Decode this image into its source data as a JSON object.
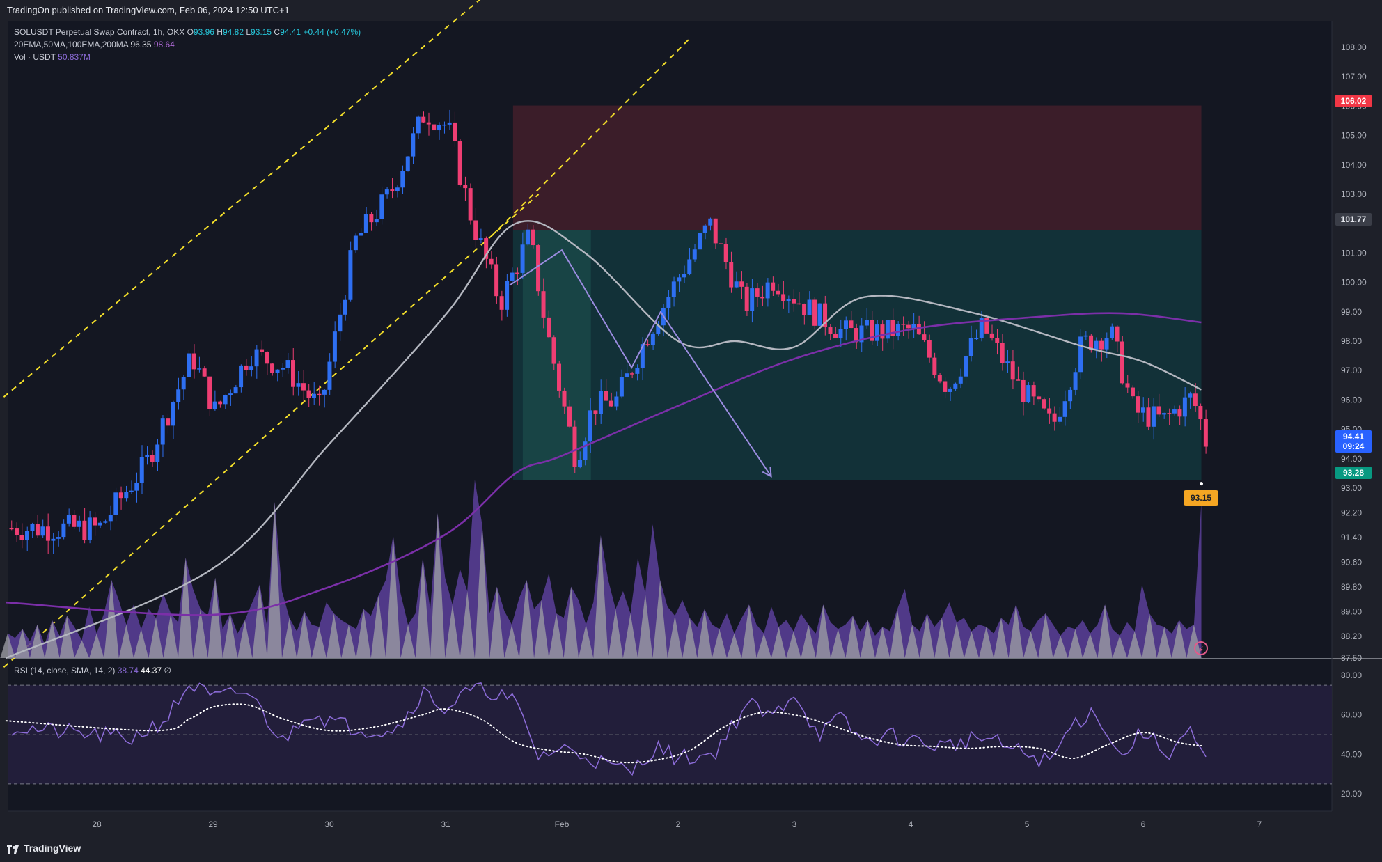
{
  "header": {
    "publisher_line": "TradingOn published on TradingView.com, Feb 06, 2024 12:50 UTC+1"
  },
  "legend": {
    "symbol_line": "SOLUSDT Perpetual Swap Contract, 1h, OKX",
    "ohlc": {
      "o_label": "O",
      "o": "93.96",
      "h_label": "H",
      "h": "94.82",
      "l_label": "L",
      "l": "93.15",
      "c_label": "C",
      "c": "94.41",
      "chg": "+0.44 (+0.47%)"
    },
    "ma_line": "20EMA,50MA,100EMA,200MA",
    "ma_val1": "96.35",
    "ma_val2": "98.64",
    "vol_line": "Vol · USDT",
    "vol_val": "50.837M",
    "rsi_line": "RSI (14, close, SMA, 14, 2)",
    "rsi_val1": "38.74",
    "rsi_val2": "44.37",
    "rsi_val3": "∅"
  },
  "price_tags": {
    "stop": "106.02",
    "entry": "101.77",
    "last_price": "94.41",
    "countdown": "09:24",
    "target": "93.28",
    "low": "93.15"
  },
  "footer": {
    "brand": "TradingView"
  },
  "colors": {
    "bull": "#2e6ff2",
    "bear": "#ef3e73",
    "ema": "#b4b7c0",
    "ma200": "#7b2fa8",
    "channel": "#f5e02a",
    "stop_zone": "#3d1e2a",
    "target_zone": "#12333a",
    "arrow": "#9b8ce0",
    "rsi": "#8c6cd8",
    "rsi_ma": "#ffffff",
    "rsi_band": "#231f3d"
  },
  "chart_data": [
    {
      "type": "candlestick",
      "title": "",
      "x_tick_labels": [
        "28",
        "29",
        "30",
        "31",
        "Feb",
        "2",
        "3",
        "4",
        "5",
        "6",
        "7"
      ],
      "y_tick_labels": [
        "108.00",
        "107.00",
        "106.00",
        "105.00",
        "104.00",
        "103.00",
        "102.00",
        "101.00",
        "100.00",
        "99.00",
        "98.00",
        "97.00",
        "96.00",
        "95.00",
        "94.00",
        "93.00",
        "92.20",
        "91.40",
        "90.60",
        "89.80",
        "89.00",
        "88.20",
        "87.50"
      ],
      "ylim": [
        87.5,
        108.3
      ],
      "series_keypoints": {
        "description_note": "",
        "day_index": [
          0,
          0.4,
          0.8,
          1.0,
          1.3,
          1.6,
          1.9,
          2.2,
          2.5,
          2.8,
          3.0,
          3.2,
          3.45,
          3.7,
          3.85,
          4.1,
          4.25,
          4.45,
          4.7,
          5.0,
          5.25,
          5.55,
          5.8,
          6.1,
          6.4,
          6.7,
          7.0,
          7.3,
          7.6,
          7.9,
          8.2,
          8.45,
          8.7,
          8.9,
          9.15,
          9.4,
          9.55
        ],
        "close": [
          91.7,
          93.8,
          97.5,
          95.6,
          97.6,
          97.1,
          95.7,
          101.4,
          103.0,
          105.8,
          105.3,
          102.2,
          99.3,
          101.6,
          98.3,
          94.0,
          95.8,
          96.0,
          98.1,
          100.3,
          102.0,
          99.2,
          100.1,
          99.1,
          98.3,
          98.3,
          98.4,
          96.4,
          98.5,
          96.5,
          95.1,
          97.9,
          98.3,
          95.6,
          95.3,
          96.1,
          94.41
        ]
      },
      "ema_50": {
        "day_index": [
          0,
          1.0,
          2.0,
          3.0,
          3.6,
          4.2,
          5.0,
          5.5,
          6.0,
          6.6,
          7.5,
          8.5,
          9.0,
          9.5
        ],
        "value": [
          87.5,
          90.4,
          94.5,
          98.9,
          102.0,
          101.0,
          98.0,
          98.0,
          97.8,
          99.5,
          99.0,
          97.8,
          97.3,
          96.35
        ]
      },
      "ma_200": {
        "day_index": [
          0,
          1.0,
          2.0,
          3.0,
          3.6,
          4.0,
          5.0,
          6.0,
          7.0,
          8.0,
          8.8,
          9.5
        ],
        "value": [
          89.3,
          88.9,
          89.8,
          91.5,
          93.5,
          94.1,
          95.8,
          97.4,
          98.4,
          98.8,
          98.95,
          98.64
        ]
      },
      "channel": {
        "upper": {
          "from": [
            -0.8,
            96.1
          ],
          "to": [
            3.5,
            110.3
          ]
        },
        "lower_1": {
          "from": [
            -0.8,
            87.2
          ],
          "to": [
            3.8,
            103.0
          ]
        },
        "lower_2": {
          "from": [
            3.4,
            101.6
          ],
          "to": [
            5.1,
            108.3
          ]
        }
      },
      "position": {
        "from_day": 3.58,
        "to_day": 9.5,
        "stop": 106.02,
        "entry": 101.77,
        "target": 93.28
      },
      "projection_path": [
        [
          3.55,
          99.9
        ],
        [
          4.0,
          101.1
        ],
        [
          4.6,
          97.1
        ],
        [
          4.85,
          99.0
        ],
        [
          5.8,
          93.4
        ]
      ],
      "volume_peaks_note": "",
      "volume": [
        22,
        18,
        26,
        15,
        30,
        12,
        34,
        20,
        38,
        28,
        16,
        46,
        22,
        40,
        70,
        52,
        30,
        48,
        26,
        44,
        36,
        58,
        40,
        32,
        90,
        62,
        44,
        38,
        72,
        26,
        40,
        22,
        34,
        50,
        66,
        28,
        140,
        60,
        36,
        24,
        42,
        30,
        28,
        50,
        40,
        34,
        30,
        26,
        44,
        38,
        56,
        70,
        110,
        58,
        30,
        40,
        90,
        44,
        130,
        72,
        48,
        80,
        60,
        160,
        120,
        40,
        64,
        42,
        30,
        54,
        70,
        44,
        52,
        76,
        40,
        36,
        64,
        52,
        30,
        50,
        110,
        70,
        44,
        60,
        40,
        90,
        58,
        120,
        70,
        46,
        38,
        52,
        36,
        28,
        44,
        30,
        26,
        40,
        22,
        36,
        48,
        30,
        22,
        46,
        28,
        34,
        24,
        40,
        30,
        22,
        48,
        32,
        26,
        30,
        38,
        24,
        34,
        20,
        28,
        24,
        44,
        62,
        30,
        24,
        40,
        28,
        36,
        50,
        32,
        36,
        24,
        30,
        28,
        22,
        36,
        30,
        48,
        28,
        24,
        34,
        40,
        30,
        20,
        28,
        26,
        34,
        22,
        30,
        48,
        26,
        20,
        32,
        24,
        66,
        40,
        30,
        28,
        22,
        34,
        26,
        30,
        140
      ]
    },
    {
      "type": "line",
      "title": "",
      "y_tick_labels": [
        "80.00",
        "60.00",
        "40.00",
        "20.00"
      ],
      "ylim": [
        15,
        83
      ],
      "bands": [
        75,
        25
      ],
      "midline": 50,
      "rsi": {
        "day_index": [
          0,
          0.3,
          0.6,
          0.8,
          1.0,
          1.3,
          1.6,
          1.8,
          2.1,
          2.4,
          2.6,
          2.8,
          3.0,
          3.2,
          3.4,
          3.6,
          3.8,
          4.0,
          4.2,
          4.4,
          4.6,
          4.8,
          5.0,
          5.3,
          5.6,
          5.8,
          6.0,
          6.2,
          6.4,
          6.6,
          6.8,
          7.0,
          7.3,
          7.6,
          7.9,
          8.2,
          8.4,
          8.6,
          8.8,
          9.0,
          9.2,
          9.4,
          9.5
        ],
        "value": [
          54,
          48,
          58,
          76,
          68,
          72,
          46,
          62,
          55,
          52,
          54,
          72,
          63,
          72,
          72,
          66,
          39,
          43,
          40,
          34,
          31,
          44,
          38,
          40,
          66,
          58,
          72,
          50,
          58,
          46,
          50,
          47,
          44,
          49,
          42,
          36,
          56,
          62,
          38,
          52,
          40,
          52,
          38.74
        ]
      },
      "rsi_ma": {
        "day_index": [
          0,
          0.5,
          0.8,
          1.0,
          1.3,
          1.6,
          2.0,
          2.4,
          2.8,
          3.0,
          3.3,
          3.6,
          3.9,
          4.2,
          4.5,
          4.8,
          5.1,
          5.4,
          5.7,
          6.0,
          6.3,
          6.6,
          6.9,
          7.2,
          7.5,
          7.8,
          8.1,
          8.4,
          8.7,
          9.0,
          9.3,
          9.5
        ],
        "value": [
          57,
          52,
          58,
          64,
          65,
          58,
          52,
          54,
          60,
          63,
          58,
          46,
          42,
          40,
          36,
          37,
          42,
          54,
          61,
          60,
          55,
          49,
          45,
          44,
          43,
          44,
          43,
          38,
          45,
          51,
          46,
          44.37
        ]
      }
    }
  ]
}
